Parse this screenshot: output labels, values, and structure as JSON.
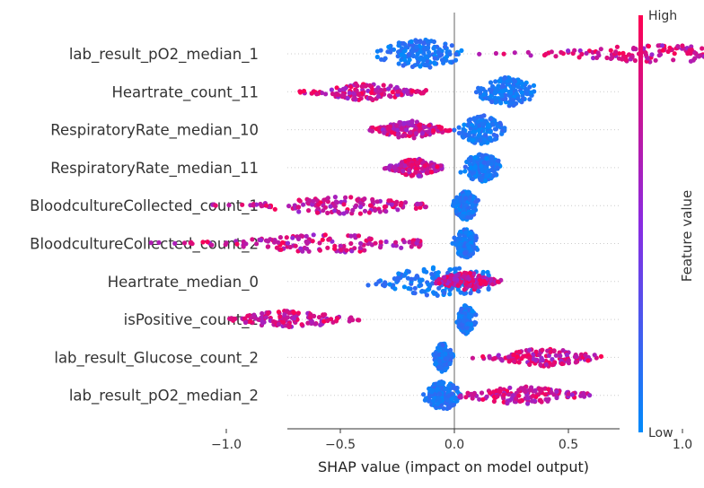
{
  "chart_data": {
    "type": "scatter",
    "subtype": "shap-beeswarm",
    "title": "",
    "xlabel": "SHAP value (impact on model output)",
    "ylabel": "",
    "xlim": [
      -1.45,
      1.45
    ],
    "x_ticks": [
      -1.0,
      -0.5,
      0.0,
      0.5,
      1.0
    ],
    "x_tick_labels": [
      "−1.0",
      "−0.5",
      "0.0",
      "0.5",
      "1.0"
    ],
    "grid": false,
    "zero_line": 0.0,
    "features": [
      {
        "name": "lab_result_pO2_median_1",
        "low_range": [
          -0.45,
          0.05
        ],
        "high_range": [
          0.1,
          1.3
        ],
        "low_center": -0.15,
        "high_center": 0.9
      },
      {
        "name": "Heartrate_count_11",
        "low_range": [
          0.05,
          0.38
        ],
        "high_range": [
          -0.68,
          -0.12
        ],
        "low_center": 0.23,
        "high_center": -0.38
      },
      {
        "name": "RespiratoryRate_median_10",
        "low_range": [
          -0.05,
          0.22
        ],
        "high_range": [
          -0.38,
          0.0
        ],
        "low_center": 0.12,
        "high_center": -0.2
      },
      {
        "name": "RespiratoryRate_median_11",
        "low_range": [
          -0.02,
          0.2
        ],
        "high_range": [
          -0.32,
          -0.05
        ],
        "low_center": 0.12,
        "high_center": -0.17
      },
      {
        "name": "BloodcultureCollected_count_1",
        "low_range": [
          -0.02,
          0.12
        ],
        "high_range": [
          -1.07,
          -0.12
        ],
        "low_center": 0.05,
        "high_center": -0.5
      },
      {
        "name": "BloodcultureCollected_count_2",
        "low_range": [
          -0.02,
          0.12
        ],
        "high_range": [
          -1.33,
          -0.15
        ],
        "low_center": 0.05,
        "high_center": -0.55
      },
      {
        "name": "Heartrate_median_0",
        "low_range": [
          -0.65,
          0.15
        ],
        "high_range": [
          -0.08,
          0.25
        ],
        "low_center": -0.05,
        "high_center": 0.05
      },
      {
        "name": "isPositive_count_2",
        "low_range": [
          0.0,
          0.1
        ],
        "high_range": [
          -1.0,
          -0.38
        ],
        "low_center": 0.05,
        "high_center": -0.72
      },
      {
        "name": "lab_result_Glucose_count_2",
        "low_range": [
          -0.1,
          0.0
        ],
        "high_range": [
          0.08,
          0.65
        ],
        "low_center": -0.05,
        "high_center": 0.4
      },
      {
        "name": "lab_result_pO2_median_2",
        "low_range": [
          -0.15,
          0.05
        ],
        "high_range": [
          0.0,
          0.65
        ],
        "low_center": -0.05,
        "high_center": 0.3
      }
    ],
    "colorbar": {
      "label": "Feature value",
      "high_label": "High",
      "low_label": "Low",
      "low_color": "#008bfb",
      "mid_color": "#8a2be2",
      "high_color": "#ff0051"
    }
  }
}
